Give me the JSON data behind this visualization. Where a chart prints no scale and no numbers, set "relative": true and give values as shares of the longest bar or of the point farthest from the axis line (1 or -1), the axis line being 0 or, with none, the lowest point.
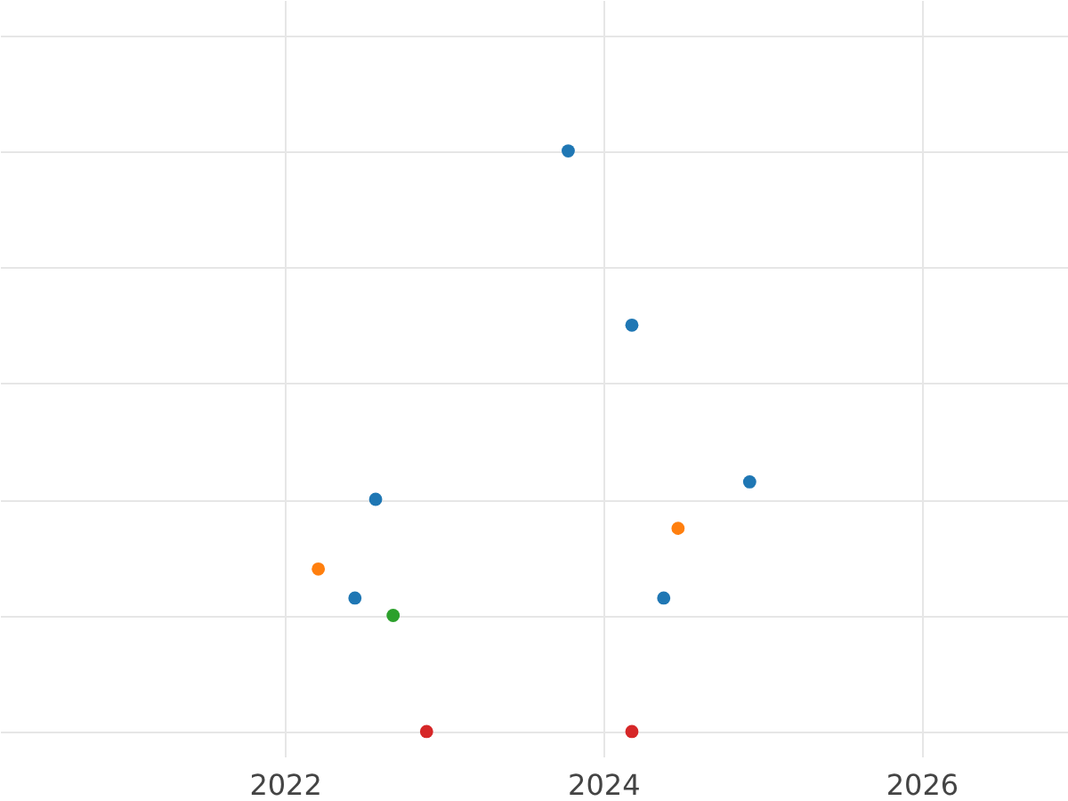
{
  "chart_data": {
    "type": "scatter",
    "relative": true,
    "xlim": [
      2020.21,
      2026.92
    ],
    "xticks": [
      2022,
      2024,
      2026
    ],
    "grid": true,
    "marker": "circle",
    "series": [
      {
        "color": "#1f77b4",
        "x": [
          2023.78,
          2024.18,
          2024.92,
          2022.57,
          2022.44,
          2024.38
        ],
        "values": [
          1,
          0.7,
          0.43,
          0.4,
          0.23,
          0.23
        ]
      },
      {
        "color": "#ff7f0e",
        "x": [
          2022.21,
          2024.47
        ],
        "values": [
          0.28,
          0.35
        ]
      },
      {
        "color": "#2ca02c",
        "x": [
          2022.68
        ],
        "values": [
          0.2
        ]
      },
      {
        "color": "#d62728",
        "x": [
          2022.89,
          2024.18
        ],
        "values": [
          0,
          0
        ]
      }
    ]
  }
}
